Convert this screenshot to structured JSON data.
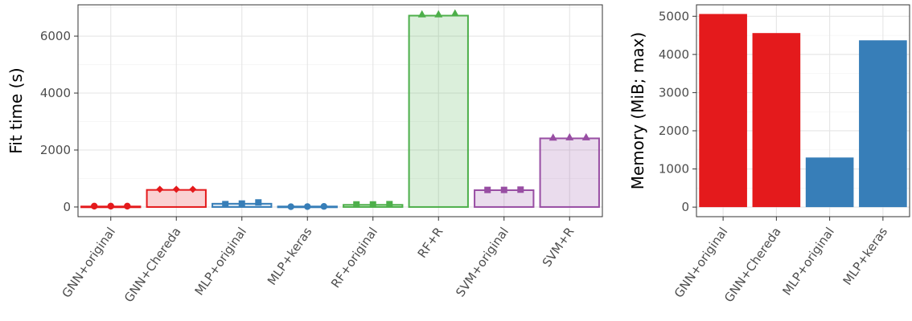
{
  "chart_data": [
    {
      "type": "bar",
      "ylabel": "Fit time (s)",
      "categories": [
        "GNN+original",
        "GNN+Chereda",
        "MLP+original",
        "MLP+keras",
        "RF+original",
        "RF+R",
        "SVM+original",
        "SVM+R"
      ],
      "values": [
        18,
        600,
        115,
        18,
        75,
        6720,
        590,
        2410
      ],
      "points": [
        [
          30,
          30,
          30
        ],
        [
          620,
          620,
          620
        ],
        [
          100,
          120,
          160
        ],
        [
          10,
          15,
          20
        ],
        [
          90,
          90,
          100
        ],
        [
          6760,
          6760,
          6790
        ],
        [
          600,
          600,
          610
        ],
        [
          2430,
          2440,
          2440
        ]
      ],
      "markers": [
        "circle",
        "diamond",
        "square",
        "circle",
        "square",
        "triangle",
        "square",
        "triangle"
      ],
      "yticks": [
        0,
        2000,
        4000,
        6000
      ],
      "ylim": [
        -340,
        7100
      ],
      "colors": [
        "#e41a1c",
        "#e41a1c",
        "#377eb8",
        "#377eb8",
        "#4daf4a",
        "#4daf4a",
        "#984ea3",
        "#984ea3"
      ],
      "grid": true
    },
    {
      "type": "bar",
      "ylabel": "Memory (MiB; max)",
      "categories": [
        "GNN+original",
        "GNN+Chereda",
        "MLP+original",
        "MLP+keras"
      ],
      "values": [
        5060,
        4560,
        1300,
        4370
      ],
      "yticks": [
        0,
        1000,
        2000,
        3000,
        4000,
        5000
      ],
      "ylim": [
        -250,
        5300
      ],
      "colors": [
        "#e41a1c",
        "#e41a1c",
        "#377eb8",
        "#377eb8"
      ],
      "grid": true
    }
  ]
}
